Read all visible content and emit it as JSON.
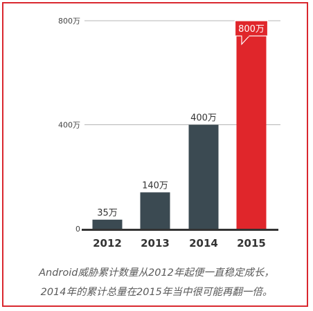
{
  "colors": {
    "frame": "#d9272e",
    "bar": "#3b4a52",
    "highlight_bar": "#e0262b",
    "axis": "#333333",
    "gridline": "#b5b5b5",
    "caption": "#5a5a5a"
  },
  "chart_data": {
    "type": "bar",
    "categories": [
      "2012",
      "2013",
      "2014",
      "2015"
    ],
    "values": [
      35,
      140,
      400,
      800
    ],
    "value_labels": [
      "35万",
      "140万",
      "400万",
      "800万"
    ],
    "highlight_index": 3,
    "ylim": [
      0,
      800
    ],
    "yticks": [
      0,
      400,
      800
    ],
    "ytick_labels": [
      "0",
      "400万",
      "800万"
    ],
    "grid": true,
    "title": "",
    "xlabel": "",
    "ylabel": ""
  },
  "caption": {
    "line1": "Android威胁累计数量从2012年起便一直稳定成长，",
    "line2": "2014年的累计总量在2015年当中很可能再翻一倍。"
  }
}
